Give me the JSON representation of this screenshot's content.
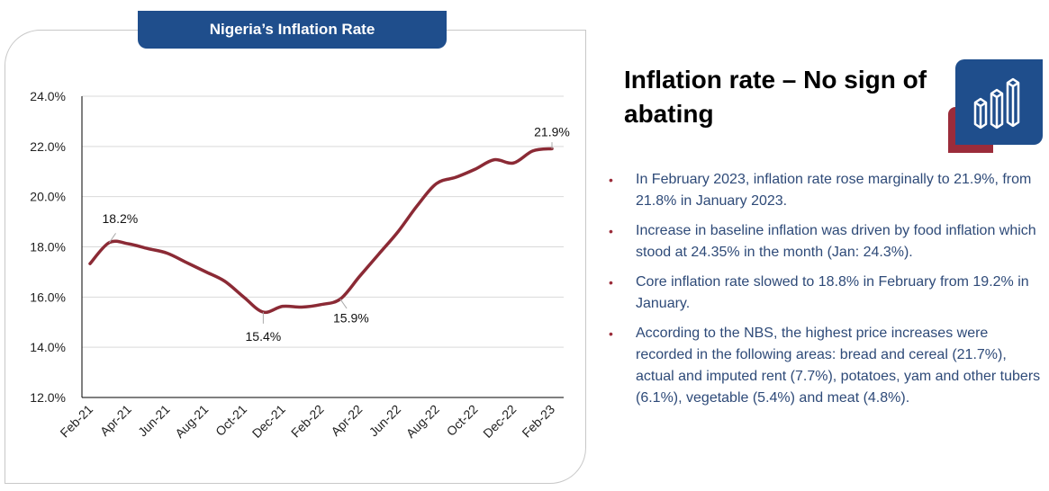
{
  "chart_data": {
    "type": "line",
    "title": "Nigeria’s Inflation Rate",
    "categories": [
      "Feb-21",
      "Mar-21",
      "Apr-21",
      "May-21",
      "Jun-21",
      "Jul-21",
      "Aug-21",
      "Sep-21",
      "Oct-21",
      "Nov-21",
      "Dec-21",
      "Jan-22",
      "Feb-22",
      "Mar-22",
      "Apr-22",
      "May-22",
      "Jun-22",
      "Jul-22",
      "Aug-22",
      "Sep-22",
      "Oct-22",
      "Nov-22",
      "Dec-22",
      "Jan-23",
      "Feb-23"
    ],
    "tick_labels": [
      "Feb-21",
      "Apr-21",
      "Jun-21",
      "Aug-21",
      "Oct-21",
      "Dec-21",
      "Feb-22",
      "Apr-22",
      "Jun-22",
      "Aug-22",
      "Oct-22",
      "Dec-22",
      "Feb-23"
    ],
    "values": [
      17.33,
      18.17,
      18.12,
      17.93,
      17.75,
      17.38,
      17.01,
      16.63,
      15.99,
      15.4,
      15.63,
      15.6,
      15.7,
      15.92,
      16.82,
      17.71,
      18.6,
      19.64,
      20.52,
      20.77,
      21.09,
      21.47,
      21.34,
      21.82,
      21.91
    ],
    "ylim": [
      12,
      24
    ],
    "yticks": [
      "12.0%",
      "14.0%",
      "16.0%",
      "18.0%",
      "20.0%",
      "22.0%",
      "24.0%"
    ],
    "grid": true,
    "line_color": "#8b2a35",
    "annotations": [
      {
        "index": 1,
        "label": "18.2%"
      },
      {
        "index": 9,
        "label": "15.4%"
      },
      {
        "index": 13,
        "label": "15.9%"
      },
      {
        "index": 24,
        "label": "21.9%"
      }
    ]
  },
  "panel": {
    "title": "Inflation rate – No sign of abating",
    "icon": "bar-chart-icon",
    "accent_blue": "#1f4e8c",
    "accent_red": "#9b2c3a",
    "bullets": [
      "In February 2023, inflation rate rose marginally to 21.9%, from 21.8% in January 2023.",
      "Increase in baseline inflation was driven by food inflation which stood at 24.35% in the month (Jan: 24.3%).",
      "Core inflation rate slowed to 18.8% in February from 19.2% in January.",
      "According to the NBS, the highest price increases were recorded in the following areas: bread and cereal (21.7%), actual and imputed rent (7.7%), potatoes, yam and other tubers (6.1%), vegetable (5.4%) and meat (4.8%)."
    ]
  }
}
